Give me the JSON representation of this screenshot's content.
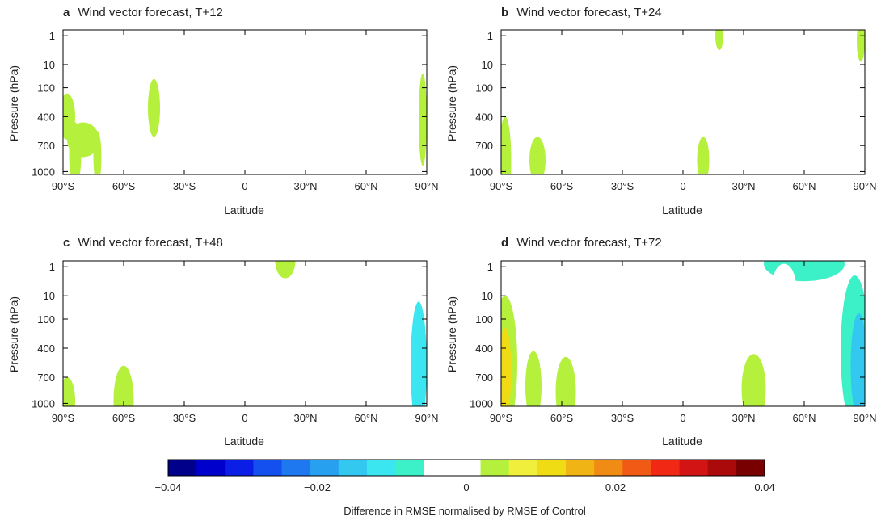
{
  "chart_data": {
    "type": "heatmap",
    "x_label": "Latitude",
    "y_label": "Pressure (hPa)",
    "x_ticks": [
      "90°S",
      "60°S",
      "30°S",
      "0",
      "30°N",
      "60°N",
      "90°N"
    ],
    "y_ticks": [
      "1",
      "10",
      "100",
      "400",
      "700",
      "1000"
    ],
    "panels": [
      {
        "letter": "a",
        "title": "Wind vector forecast, T+12",
        "blobs": [
          {
            "lat": -88,
            "p": 3,
            "dlat": 4,
            "dp": 0.8,
            "level": 1
          },
          {
            "lat": -80,
            "p": 3.8,
            "dlat": 8,
            "dp": 0.6,
            "level": 1
          },
          {
            "lat": -84,
            "p": 4.3,
            "dlat": 3,
            "dp": 1.1,
            "level": 1
          },
          {
            "lat": -73,
            "p": 4.4,
            "dlat": 2,
            "dp": 0.9,
            "level": 1
          },
          {
            "lat": -45,
            "p": 2.7,
            "dlat": 3,
            "dp": 1,
            "level": 1
          },
          {
            "lat": -25,
            "p": 4.5,
            "dlat": 6,
            "dp": 1.5,
            "level": -1
          },
          {
            "lat": -20,
            "p": 3,
            "dlat": 3,
            "dp": 1,
            "level": -1
          },
          {
            "lat": -5,
            "p": 4.3,
            "dlat": 8,
            "dp": 1.3,
            "level": -1
          },
          {
            "lat": 65,
            "p": 3.8,
            "dlat": 8,
            "dp": 2.6,
            "level": -1
          },
          {
            "lat": 78,
            "p": 3,
            "dlat": 5,
            "dp": 1,
            "level": -1
          },
          {
            "lat": 88,
            "p": 3.1,
            "dlat": 2,
            "dp": 1.6,
            "level": 1
          },
          {
            "lat": -60,
            "p": 0.8,
            "dlat": 5,
            "dp": 0.5,
            "level": -1
          },
          {
            "lat": -20,
            "p": 1.3,
            "dlat": 5,
            "dp": 0.5,
            "level": -1
          }
        ]
      },
      {
        "letter": "b",
        "title": "Wind vector forecast, T+24",
        "blobs": [
          {
            "lat": -88,
            "p": 4.5,
            "dlat": 3,
            "dp": 1.5,
            "level": 1
          },
          {
            "lat": -72,
            "p": 4.5,
            "dlat": 4,
            "dp": 0.8,
            "level": 1
          },
          {
            "lat": -30,
            "p": 3.9,
            "dlat": 5,
            "dp": 1.5,
            "level": -1
          },
          {
            "lat": 15,
            "p": 3.5,
            "dlat": 5,
            "dp": 1.5,
            "level": -1
          },
          {
            "lat": 18,
            "p": 0.2,
            "dlat": 2,
            "dp": 0.5,
            "level": 1
          },
          {
            "lat": 67,
            "p": 3.4,
            "dlat": 8,
            "dp": 2.4,
            "level": -1
          },
          {
            "lat": 80,
            "p": 3.5,
            "dlat": 6,
            "dp": 2,
            "level": -1
          },
          {
            "lat": 88,
            "p": 0.4,
            "dlat": 2,
            "dp": 0.7,
            "level": 1
          },
          {
            "lat": -35,
            "p": 1.2,
            "dlat": 5,
            "dp": 0.5,
            "level": -1
          },
          {
            "lat": 10,
            "p": 4.5,
            "dlat": 3,
            "dp": 0.8,
            "level": 1
          }
        ]
      },
      {
        "letter": "c",
        "title": "Wind vector forecast, T+48",
        "blobs": [
          {
            "lat": -88,
            "p": 4.8,
            "dlat": 4,
            "dp": 0.8,
            "level": 1
          },
          {
            "lat": -60,
            "p": 4.8,
            "dlat": 5,
            "dp": 1.2,
            "level": 1
          },
          {
            "lat": -35,
            "p": 4.5,
            "dlat": 8,
            "dp": 1.5,
            "level": -1
          },
          {
            "lat": -25,
            "p": 2.5,
            "dlat": 5,
            "dp": 1,
            "level": -1
          },
          {
            "lat": 20,
            "p": 0,
            "dlat": 5,
            "dp": 0.6,
            "level": 1
          },
          {
            "lat": 0,
            "p": 3.8,
            "dlat": 8,
            "dp": 1.6,
            "level": -1
          },
          {
            "lat": 50,
            "p": 2.2,
            "dlat": 6,
            "dp": 1.2,
            "level": -1
          },
          {
            "lat": 82,
            "p": 3.5,
            "dlat": 8,
            "dp": 3,
            "level": -1
          },
          {
            "lat": 86,
            "p": 3.6,
            "dlat": 4,
            "dp": 2.2,
            "level": -3
          },
          {
            "lat": 70,
            "p": 0.3,
            "dlat": 8,
            "dp": 0.8,
            "level": -1
          },
          {
            "lat": -80,
            "p": 0.8,
            "dlat": 5,
            "dp": 0.5,
            "level": -1
          }
        ]
      },
      {
        "letter": "d",
        "title": "Wind vector forecast, T+72",
        "blobs": [
          {
            "lat": -88,
            "p": 3.5,
            "dlat": 6,
            "dp": 2.3,
            "level": 1
          },
          {
            "lat": -88,
            "p": 3.8,
            "dlat": 3,
            "dp": 1.5,
            "level": 3
          },
          {
            "lat": -74,
            "p": 4.3,
            "dlat": 4,
            "dp": 1.2,
            "level": 1
          },
          {
            "lat": -58,
            "p": 4.5,
            "dlat": 5,
            "dp": 1.2,
            "level": 1
          },
          {
            "lat": -40,
            "p": 3.5,
            "dlat": 5,
            "dp": 1.5,
            "level": -1
          },
          {
            "lat": 0,
            "p": 3.8,
            "dlat": 6,
            "dp": 1.6,
            "level": -1
          },
          {
            "lat": 35,
            "p": 4.4,
            "dlat": 6,
            "dp": 1.2,
            "level": 1
          },
          {
            "lat": 60,
            "p": 0.1,
            "dlat": 20,
            "dp": 0.6,
            "level": -2
          },
          {
            "lat": 65,
            "p": 3.3,
            "dlat": 10,
            "dp": 2.5,
            "level": -1
          },
          {
            "lat": 85,
            "p": 3.1,
            "dlat": 7,
            "dp": 2.6,
            "level": -2
          },
          {
            "lat": 87,
            "p": 3.6,
            "dlat": 4,
            "dp": 1.8,
            "level": -4
          },
          {
            "lat": 50,
            "p": 0.9,
            "dlat": 6,
            "dp": 0.8,
            "level": -1
          }
        ]
      }
    ],
    "colorbar": {
      "min": -0.04,
      "max": 0.04,
      "tick_labels": [
        "−0.04",
        "−0.02",
        "0",
        "0.02",
        "0.04"
      ],
      "label": "Difference in RMSE normalised by RMSE of Control",
      "colors": [
        "#00008b",
        "#0000cd",
        "#0a1ee6",
        "#1450f0",
        "#1e78f0",
        "#28a0f0",
        "#32c8f0",
        "#3ce6f0",
        "#3cf0c8",
        "#ffffff",
        "#ffffff",
        "#b4f03c",
        "#f0f03c",
        "#f0dc14",
        "#f0b414",
        "#f08c14",
        "#f05a14",
        "#f02814",
        "#d21414",
        "#aa0a0a",
        "#780000"
      ]
    }
  }
}
